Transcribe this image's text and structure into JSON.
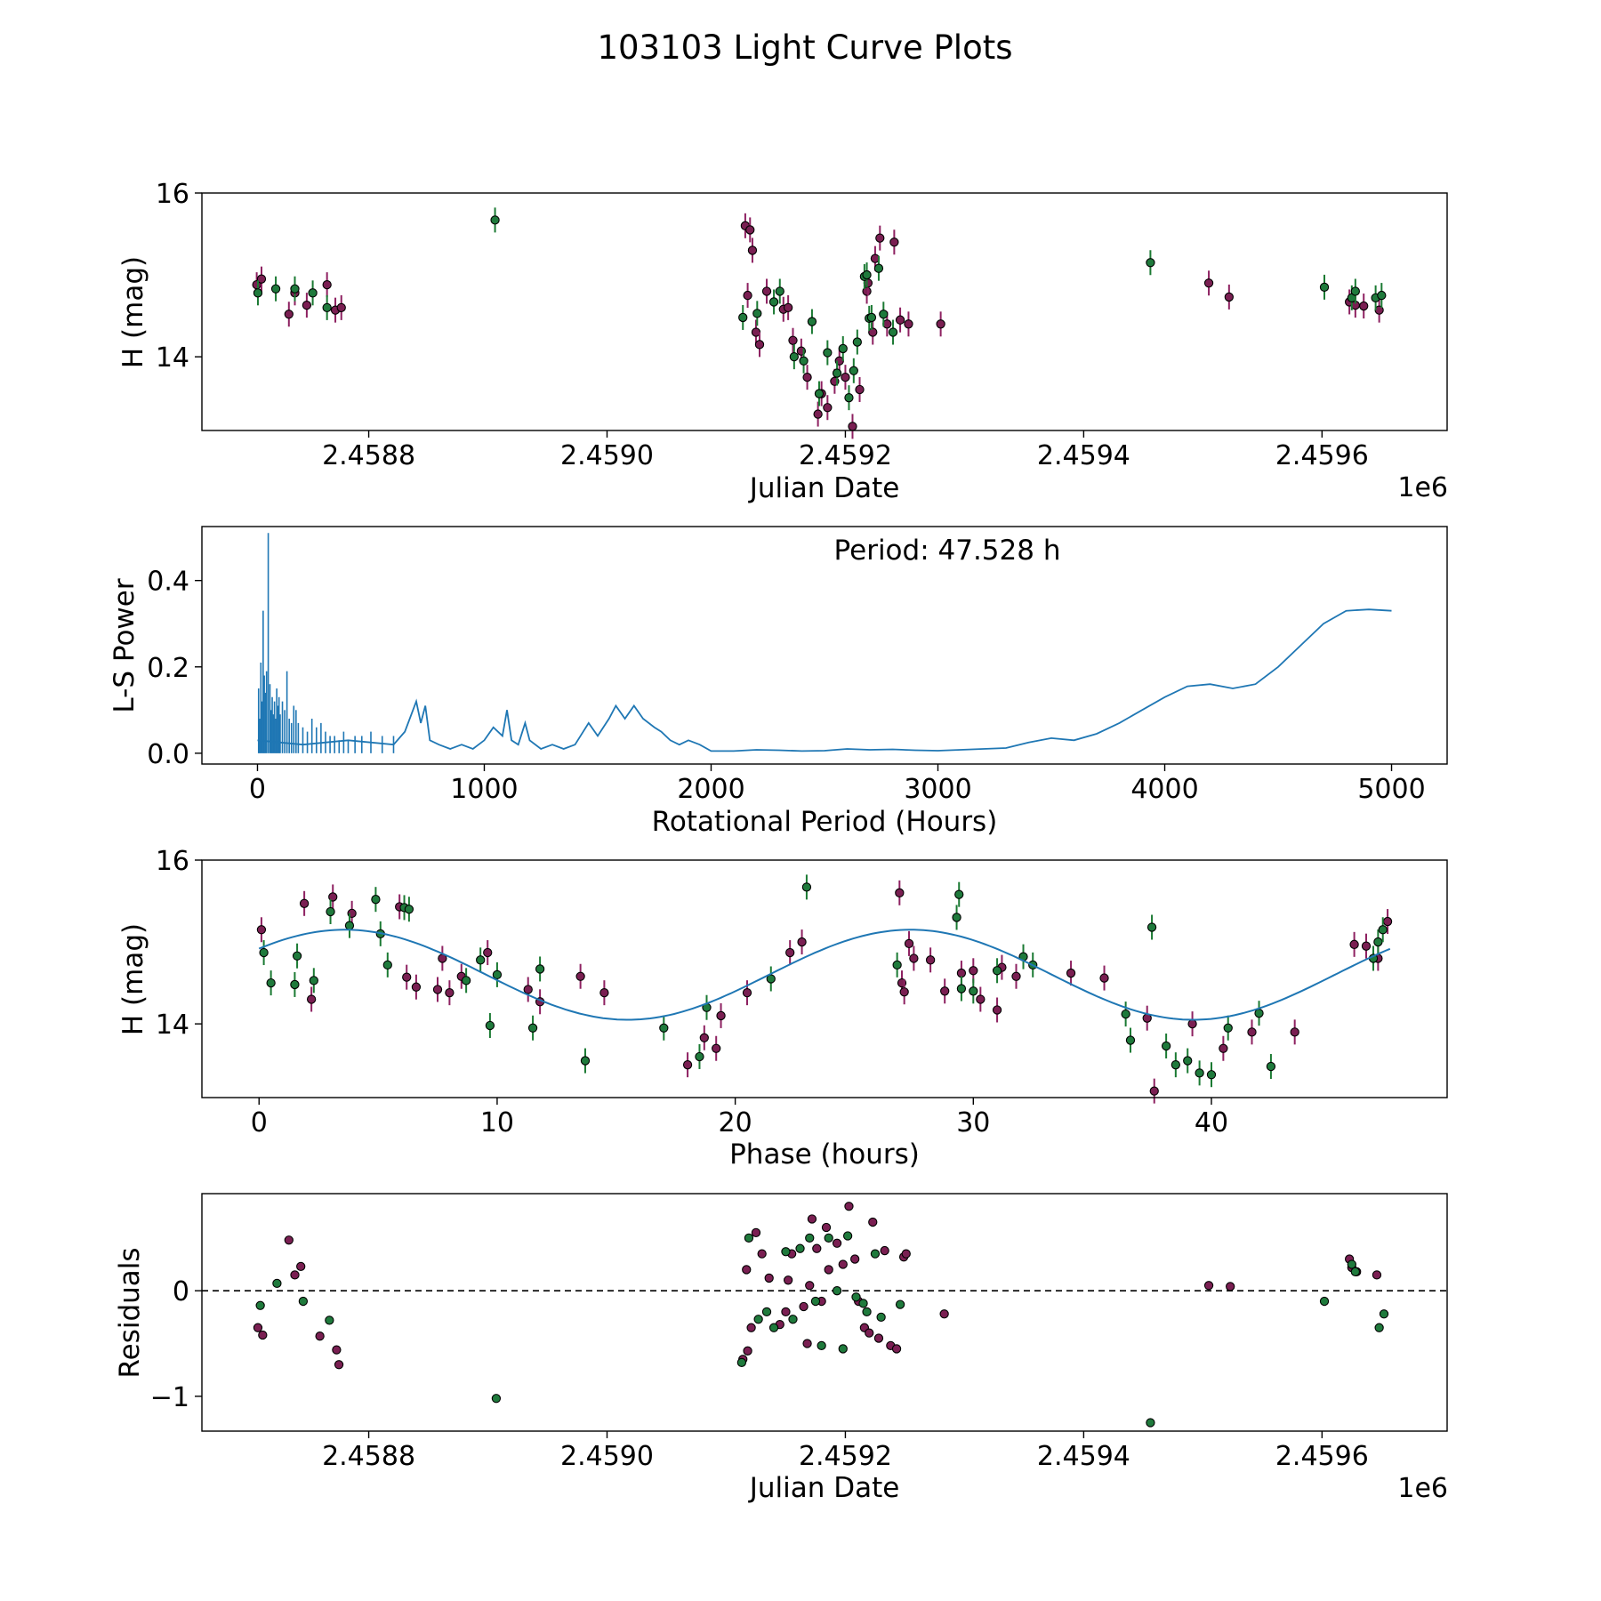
{
  "figure": {
    "title": "103103 Light Curve Plots"
  },
  "colors": {
    "filter_o": "#7a1f52",
    "filter_c": "#1f7a3c",
    "errorbar_o": "#8e2161",
    "errorbar_c": "#1b7a33",
    "periodogram_line": "#1f77b4",
    "fit_line": "#1f77b4",
    "marker_edge": "#000000"
  },
  "chart_data": [
    {
      "id": "lightcurve",
      "type": "scatter",
      "xlabel": "Julian Date",
      "ylabel": "H (mag)",
      "offset_label": "1e6",
      "xlim": [
        2458660,
        2459705
      ],
      "ylim": [
        13.1,
        16.0
      ],
      "x_ticks": [
        2458800,
        2459000,
        2459200,
        2459400,
        2459600
      ],
      "x_tick_labels": [
        "2.4588",
        "2.4590",
        "2.4592",
        "2.4594",
        "2.4596"
      ],
      "y_ticks": [
        14,
        16
      ],
      "y_tick_labels": [
        "14",
        "16"
      ],
      "marker_note": "o = magenta points, c = green points",
      "series": [
        {
          "name": "o",
          "x": [
            2458706,
            2458710,
            2458733,
            2458738,
            2458748,
            2458765,
            2458772,
            2458777,
            2459116,
            2459118,
            2459120,
            2459122,
            2459125,
            2459128,
            2459134,
            2459148,
            2459152,
            2459156,
            2459163,
            2459168,
            2459177,
            2459180,
            2459185,
            2459191,
            2459195,
            2459200,
            2459206,
            2459212,
            2459218,
            2459219,
            2459223,
            2459225,
            2459229,
            2459235,
            2459241,
            2459246,
            2459253,
            2459280,
            2459505,
            2459522,
            2459623,
            2459628,
            2459635,
            2459648
          ],
          "y": [
            14.88,
            14.95,
            14.52,
            14.78,
            14.63,
            14.88,
            14.57,
            14.6,
            15.6,
            14.75,
            15.55,
            15.3,
            14.3,
            14.15,
            14.8,
            14.58,
            14.6,
            14.2,
            14.07,
            13.75,
            13.3,
            13.55,
            13.38,
            13.7,
            13.95,
            13.75,
            13.15,
            13.6,
            14.8,
            14.9,
            14.3,
            15.2,
            15.45,
            14.4,
            15.4,
            14.45,
            14.4,
            14.4,
            14.9,
            14.73,
            14.67,
            14.63,
            14.62,
            14.57
          ]
        },
        {
          "name": "c",
          "x": [
            2458707,
            2458722,
            2458738,
            2458753,
            2458765,
            2458906,
            2459114,
            2459126,
            2459140,
            2459145,
            2459157,
            2459165,
            2459172,
            2459178,
            2459185,
            2459193,
            2459198,
            2459203,
            2459207,
            2459210,
            2459216,
            2459218,
            2459220,
            2459222,
            2459228,
            2459232,
            2459240,
            2459456,
            2459602,
            2459625,
            2459628,
            2459645,
            2459650
          ],
          "y": [
            14.78,
            14.83,
            14.83,
            14.78,
            14.6,
            15.67,
            14.48,
            14.53,
            14.67,
            14.8,
            14.0,
            13.95,
            14.43,
            13.55,
            14.05,
            13.8,
            14.1,
            13.5,
            13.83,
            14.18,
            14.98,
            15.0,
            14.47,
            14.48,
            15.08,
            14.52,
            14.3,
            15.15,
            14.85,
            14.72,
            14.8,
            14.72,
            14.75
          ]
        }
      ]
    },
    {
      "id": "periodogram",
      "type": "line",
      "xlabel": "Rotational Period (Hours)",
      "ylabel": "L-S Power",
      "annotation": "Period: 47.528 h",
      "xlim": [
        -245,
        5245
      ],
      "ylim": [
        -0.025,
        0.525
      ],
      "x_ticks": [
        0,
        1000,
        2000,
        3000,
        4000,
        5000
      ],
      "x_tick_labels": [
        "0",
        "1000",
        "2000",
        "3000",
        "4000",
        "5000"
      ],
      "y_ticks": [
        0.0,
        0.2,
        0.4
      ],
      "y_tick_labels": [
        "0.0",
        "0.2",
        "0.4"
      ],
      "spikes_x": [
        5,
        10,
        15,
        20,
        25,
        30,
        35,
        40,
        47.5,
        55,
        60,
        65,
        70,
        75,
        80,
        85,
        90,
        95,
        100,
        110,
        120,
        130,
        140,
        150,
        160,
        170,
        180,
        200,
        220,
        240,
        260,
        280,
        300,
        320,
        340,
        360,
        380,
        400,
        430,
        460,
        500,
        550,
        600
      ],
      "spikes_y": [
        0.15,
        0.08,
        0.21,
        0.12,
        0.33,
        0.18,
        0.14,
        0.19,
        0.51,
        0.16,
        0.1,
        0.13,
        0.09,
        0.12,
        0.08,
        0.15,
        0.11,
        0.13,
        0.09,
        0.12,
        0.1,
        0.19,
        0.08,
        0.07,
        0.11,
        0.1,
        0.07,
        0.06,
        0.05,
        0.08,
        0.06,
        0.07,
        0.05,
        0.04,
        0.04,
        0.03,
        0.05,
        0.03,
        0.04,
        0.04,
        0.05,
        0.04,
        0.04
      ],
      "x": [
        0,
        200,
        400,
        600,
        650,
        700,
        720,
        740,
        760,
        800,
        850,
        900,
        950,
        1000,
        1040,
        1080,
        1100,
        1120,
        1150,
        1180,
        1200,
        1250,
        1300,
        1350,
        1400,
        1460,
        1500,
        1550,
        1580,
        1620,
        1660,
        1700,
        1750,
        1780,
        1820,
        1860,
        1900,
        1950,
        2000,
        2100,
        2200,
        2300,
        2400,
        2500,
        2600,
        2700,
        2800,
        2900,
        3000,
        3100,
        3200,
        3300,
        3400,
        3500,
        3600,
        3700,
        3800,
        3900,
        4000,
        4100,
        4200,
        4300,
        4400,
        4500,
        4600,
        4700,
        4800,
        4900,
        5000
      ],
      "y": [
        0.03,
        0.02,
        0.03,
        0.02,
        0.05,
        0.12,
        0.07,
        0.11,
        0.03,
        0.02,
        0.01,
        0.02,
        0.01,
        0.03,
        0.06,
        0.04,
        0.1,
        0.03,
        0.02,
        0.07,
        0.03,
        0.01,
        0.02,
        0.01,
        0.02,
        0.07,
        0.04,
        0.08,
        0.11,
        0.08,
        0.11,
        0.08,
        0.06,
        0.05,
        0.03,
        0.02,
        0.03,
        0.02,
        0.005,
        0.005,
        0.008,
        0.007,
        0.005,
        0.006,
        0.01,
        0.008,
        0.009,
        0.007,
        0.006,
        0.008,
        0.01,
        0.012,
        0.025,
        0.035,
        0.03,
        0.045,
        0.07,
        0.1,
        0.13,
        0.155,
        0.16,
        0.15,
        0.16,
        0.2,
        0.25,
        0.3,
        0.33,
        0.333,
        0.33
      ]
    },
    {
      "id": "phased",
      "type": "scatter",
      "xlabel": "Phase (hours)",
      "ylabel": "H (mag)",
      "xlim": [
        -2.4,
        49.9
      ],
      "ylim": [
        13.1,
        16.0
      ],
      "x_ticks": [
        0,
        10,
        20,
        30,
        40
      ],
      "x_tick_labels": [
        "0",
        "10",
        "20",
        "30",
        "40"
      ],
      "y_ticks": [
        14,
        16
      ],
      "y_tick_labels": [
        "14",
        "16"
      ],
      "fit": {
        "mean": 14.6,
        "amplitude": 1.1,
        "period": 23.764,
        "phase_offset": 3.6
      },
      "series": [
        {
          "name": "o",
          "x": [
            0.1,
            1.9,
            2.2,
            3.1,
            3.9,
            5.9,
            6.2,
            6.6,
            7.5,
            7.7,
            8.0,
            8.5,
            9.6,
            11.3,
            11.8,
            13.5,
            14.5,
            18.0,
            18.7,
            19.2,
            19.4,
            20.5,
            22.3,
            22.8,
            26.9,
            27.0,
            27.1,
            27.3,
            27.5,
            28.2,
            28.8,
            29.5,
            30.0,
            30.3,
            31.0,
            31.2,
            31.8,
            34.1,
            35.5,
            37.3,
            37.6,
            39.2,
            40.5,
            41.7,
            43.5,
            46.0,
            46.5,
            47.0,
            47.4
          ],
          "y": [
            15.15,
            15.47,
            14.3,
            15.55,
            15.35,
            15.43,
            14.57,
            14.45,
            14.42,
            14.8,
            14.38,
            14.58,
            14.87,
            14.42,
            14.27,
            14.58,
            14.38,
            13.5,
            13.83,
            13.7,
            14.1,
            14.38,
            14.87,
            15.0,
            15.6,
            14.5,
            14.39,
            14.98,
            14.8,
            14.78,
            14.4,
            14.62,
            14.65,
            14.3,
            14.17,
            14.69,
            14.58,
            14.62,
            14.56,
            14.07,
            13.18,
            14.0,
            13.7,
            13.9,
            13.9,
            14.97,
            14.95,
            14.8,
            15.25
          ]
        },
        {
          "name": "c",
          "x": [
            0.2,
            0.5,
            1.5,
            1.6,
            2.3,
            3.0,
            3.8,
            4.9,
            5.1,
            5.4,
            6.1,
            6.3,
            8.7,
            9.3,
            9.7,
            10.0,
            11.5,
            11.8,
            13.7,
            17.0,
            18.5,
            18.8,
            21.5,
            23.0,
            26.8,
            29.3,
            29.4,
            29.5,
            30.0,
            31.0,
            32.1,
            32.5,
            36.4,
            36.6,
            37.5,
            38.1,
            38.5,
            39.0,
            39.5,
            40.0,
            40.7,
            42.0,
            42.5,
            46.8,
            47.0,
            47.2
          ],
          "y": [
            14.87,
            14.5,
            14.48,
            14.83,
            14.53,
            15.37,
            15.2,
            15.52,
            15.1,
            14.72,
            15.42,
            15.4,
            14.53,
            14.78,
            13.98,
            14.6,
            13.95,
            14.67,
            13.55,
            13.95,
            13.6,
            14.2,
            14.55,
            15.67,
            14.72,
            15.3,
            15.58,
            14.43,
            14.4,
            14.65,
            14.82,
            14.72,
            14.12,
            13.8,
            15.18,
            13.73,
            13.5,
            13.55,
            13.4,
            13.38,
            13.95,
            14.13,
            13.48,
            14.8,
            15.0,
            15.15
          ]
        }
      ]
    },
    {
      "id": "residuals",
      "type": "scatter",
      "xlabel": "Julian Date",
      "ylabel": "Residuals",
      "offset_label": "1e6",
      "xlim": [
        2458660,
        2459705
      ],
      "ylim": [
        -1.33,
        0.92
      ],
      "x_ticks": [
        2458800,
        2459000,
        2459200,
        2459400,
        2459600
      ],
      "x_tick_labels": [
        "2.4588",
        "2.4590",
        "2.4592",
        "2.4594",
        "2.4596"
      ],
      "y_ticks": [
        -1,
        0
      ],
      "y_tick_labels": [
        "−1",
        "0"
      ],
      "zero_line": 0,
      "series": [
        {
          "name": "o",
          "x": [
            2458707,
            2458711,
            2458733,
            2458738,
            2458743,
            2458759,
            2458773,
            2458775,
            2459114,
            2459117,
            2459118,
            2459121,
            2459125,
            2459130,
            2459136,
            2459145,
            2459150,
            2459152,
            2459155,
            2459165,
            2459168,
            2459170,
            2459172,
            2459176,
            2459180,
            2459184,
            2459186,
            2459193,
            2459198,
            2459203,
            2459208,
            2459211,
            2459216,
            2459220,
            2459223,
            2459228,
            2459233,
            2459238,
            2459243,
            2459249,
            2459251,
            2459283,
            2459505,
            2459523,
            2459623,
            2459625,
            2459629,
            2459646
          ],
          "y": [
            -0.35,
            -0.42,
            0.48,
            0.15,
            0.23,
            -0.43,
            -0.56,
            -0.7,
            -0.65,
            0.2,
            -0.57,
            -0.35,
            0.55,
            0.35,
            0.12,
            -0.32,
            -0.2,
            0.1,
            0.35,
            -0.15,
            -0.5,
            0.05,
            0.68,
            0.4,
            -0.1,
            0.6,
            0.2,
            0.45,
            0.25,
            0.8,
            0.3,
            -0.1,
            -0.35,
            -0.4,
            0.65,
            -0.45,
            0.38,
            -0.52,
            -0.55,
            0.32,
            0.35,
            -0.22,
            0.05,
            0.04,
            0.3,
            0.22,
            0.18,
            0.15
          ]
        },
        {
          "name": "c",
          "x": [
            2458709,
            2458723,
            2458745,
            2458767,
            2458907,
            2459113,
            2459119,
            2459127,
            2459134,
            2459140,
            2459150,
            2459156,
            2459162,
            2459170,
            2459175,
            2459180,
            2459186,
            2459193,
            2459198,
            2459202,
            2459209,
            2459215,
            2459218,
            2459225,
            2459230,
            2459246,
            2459456,
            2459602,
            2459625,
            2459628,
            2459648,
            2459652
          ],
          "y": [
            -0.14,
            0.07,
            -0.1,
            -0.28,
            -1.02,
            -0.68,
            0.5,
            -0.27,
            -0.2,
            -0.35,
            0.37,
            -0.27,
            0.4,
            0.5,
            -0.1,
            -0.52,
            0.5,
            0.0,
            -0.55,
            0.52,
            -0.06,
            -0.12,
            -0.2,
            0.35,
            -0.25,
            -0.13,
            -1.25,
            -0.1,
            0.25,
            0.18,
            -0.35,
            -0.22
          ]
        }
      ]
    }
  ]
}
